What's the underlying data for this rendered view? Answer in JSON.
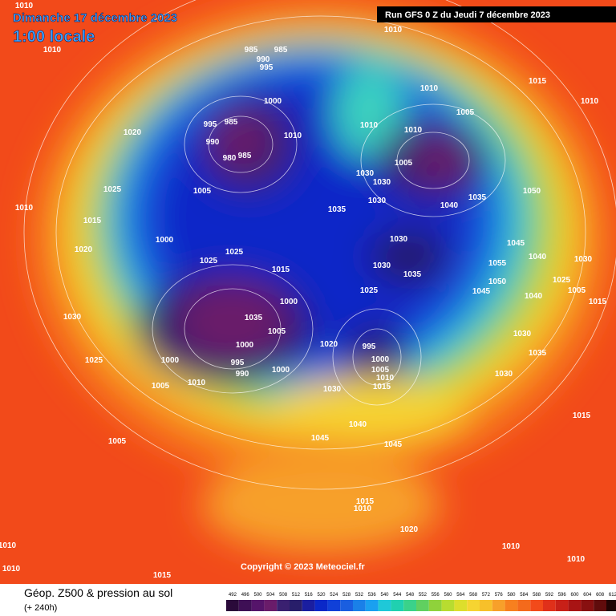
{
  "header": {
    "date": "Dimanche 17 décembre 2023",
    "time": "1:00 locale",
    "run": "Run GFS 0 Z du Jeudi 7 décembre 2023"
  },
  "map": {
    "copyright": "Copyright © 2023 Meteociel.fr",
    "isobar_labels": [
      "1010",
      "1010",
      "985",
      "985",
      "990",
      "995",
      "1015",
      "1010",
      "1010",
      "1020",
      "995",
      "985",
      "990",
      "980",
      "985",
      "1000",
      "1010",
      "1010",
      "1010",
      "1005",
      "1005",
      "1030",
      "1030",
      "1040",
      "1035",
      "1050",
      "1025",
      "1005",
      "1015",
      "1035",
      "1030",
      "1000",
      "1020",
      "1025",
      "1025",
      "1015",
      "1030",
      "1030",
      "1035",
      "1045",
      "1040",
      "1030",
      "1055",
      "1050",
      "1025",
      "1005",
      "1040",
      "1045",
      "1025",
      "1030",
      "1000",
      "1035",
      "1005",
      "1000",
      "1020",
      "995",
      "1000",
      "1030",
      "1035",
      "1025",
      "1000",
      "995",
      "990",
      "1000",
      "1005",
      "1010",
      "1015",
      "1010",
      "1005",
      "1030",
      "1030",
      "1040",
      "1045",
      "1045",
      "1015",
      "1005",
      "1015",
      "1010",
      "1020",
      "1010",
      "1010",
      "1010",
      "1015",
      "1010",
      "1010",
      "1015",
      "1010"
    ]
  },
  "legend": {
    "title": "Géop. Z500 & pression au sol",
    "lead": "(+ 240h)",
    "scale": [
      492,
      496,
      500,
      504,
      508,
      512,
      516,
      520,
      524,
      528,
      532,
      536,
      540,
      544,
      548,
      552,
      556,
      560,
      564,
      568,
      572,
      576,
      580,
      584,
      588,
      592,
      596,
      600,
      604,
      608,
      612
    ]
  }
}
